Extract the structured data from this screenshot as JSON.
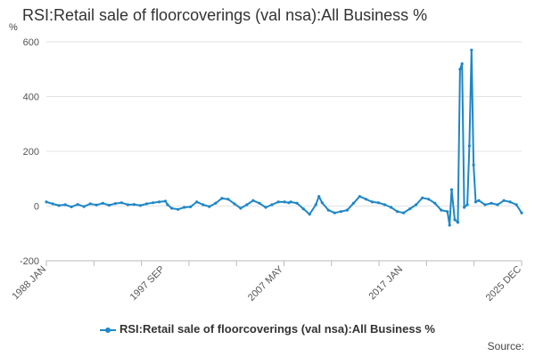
{
  "chart_data": {
    "type": "line",
    "title": "RSI:Retail sale of floorcoverings (val nsa):All Business %",
    "unit": "%",
    "ylim": [
      -200,
      600
    ],
    "y_ticks": [
      -200,
      0,
      200,
      400,
      600
    ],
    "x_tick_labels": [
      "1988 JAN",
      "1997 SEP",
      "2007 MAY",
      "2017 JAN",
      "2025 DEC"
    ],
    "x_range": [
      "1988-01",
      "2025-12"
    ],
    "grid": true,
    "legend_position": "bottom",
    "series": [
      {
        "name": "RSI:Retail sale of floorcoverings (val nsa):All Business %",
        "color": "#1e87c7",
        "points": [
          [
            "1988-01",
            15
          ],
          [
            "1988-07",
            8
          ],
          [
            "1989-01",
            2
          ],
          [
            "1989-07",
            5
          ],
          [
            "1990-01",
            -3
          ],
          [
            "1990-07",
            6
          ],
          [
            "1991-01",
            -2
          ],
          [
            "1991-07",
            8
          ],
          [
            "1992-01",
            4
          ],
          [
            "1992-07",
            10
          ],
          [
            "1993-01",
            3
          ],
          [
            "1993-07",
            9
          ],
          [
            "1994-01",
            12
          ],
          [
            "1994-07",
            5
          ],
          [
            "1995-01",
            6
          ],
          [
            "1995-07",
            2
          ],
          [
            "1996-01",
            8
          ],
          [
            "1996-07",
            12
          ],
          [
            "1997-01",
            15
          ],
          [
            "1997-07",
            18
          ],
          [
            "1997-09",
            5
          ],
          [
            "1998-01",
            -8
          ],
          [
            "1998-07",
            -12
          ],
          [
            "1999-01",
            -5
          ],
          [
            "1999-07",
            -3
          ],
          [
            "2000-01",
            15
          ],
          [
            "2000-07",
            5
          ],
          [
            "2001-01",
            -2
          ],
          [
            "2001-07",
            10
          ],
          [
            "2002-01",
            28
          ],
          [
            "2002-07",
            25
          ],
          [
            "2003-01",
            8
          ],
          [
            "2003-07",
            -8
          ],
          [
            "2004-01",
            5
          ],
          [
            "2004-07",
            20
          ],
          [
            "2005-01",
            10
          ],
          [
            "2005-07",
            -5
          ],
          [
            "2006-01",
            5
          ],
          [
            "2006-07",
            15
          ],
          [
            "2007-01",
            15
          ],
          [
            "2007-05",
            12
          ],
          [
            "2007-07",
            15
          ],
          [
            "2008-01",
            10
          ],
          [
            "2008-07",
            -10
          ],
          [
            "2009-01",
            -30
          ],
          [
            "2009-07",
            5
          ],
          [
            "2009-10",
            35
          ],
          [
            "2010-01",
            12
          ],
          [
            "2010-07",
            -15
          ],
          [
            "2011-01",
            -25
          ],
          [
            "2011-07",
            -20
          ],
          [
            "2012-01",
            -15
          ],
          [
            "2012-07",
            10
          ],
          [
            "2013-01",
            35
          ],
          [
            "2013-07",
            25
          ],
          [
            "2014-01",
            15
          ],
          [
            "2014-07",
            12
          ],
          [
            "2015-01",
            5
          ],
          [
            "2015-07",
            -5
          ],
          [
            "2016-01",
            -20
          ],
          [
            "2016-07",
            -25
          ],
          [
            "2017-01",
            -10
          ],
          [
            "2017-07",
            5
          ],
          [
            "2018-01",
            30
          ],
          [
            "2018-07",
            25
          ],
          [
            "2019-01",
            10
          ],
          [
            "2019-07",
            -15
          ],
          [
            "2020-01",
            -20
          ],
          [
            "2020-03",
            -70
          ],
          [
            "2020-05",
            60
          ],
          [
            "2020-08",
            -50
          ],
          [
            "2020-11",
            -60
          ],
          [
            "2021-01",
            500
          ],
          [
            "2021-03",
            520
          ],
          [
            "2021-05",
            -5
          ],
          [
            "2021-08",
            5
          ],
          [
            "2021-10",
            220
          ],
          [
            "2021-12",
            570
          ],
          [
            "2022-02",
            150
          ],
          [
            "2022-04",
            15
          ],
          [
            "2022-07",
            20
          ],
          [
            "2023-01",
            5
          ],
          [
            "2023-07",
            10
          ],
          [
            "2024-01",
            5
          ],
          [
            "2024-07",
            20
          ],
          [
            "2025-01",
            15
          ],
          [
            "2025-07",
            5
          ],
          [
            "2025-12",
            -25
          ]
        ]
      }
    ]
  },
  "source_label": "Source:"
}
